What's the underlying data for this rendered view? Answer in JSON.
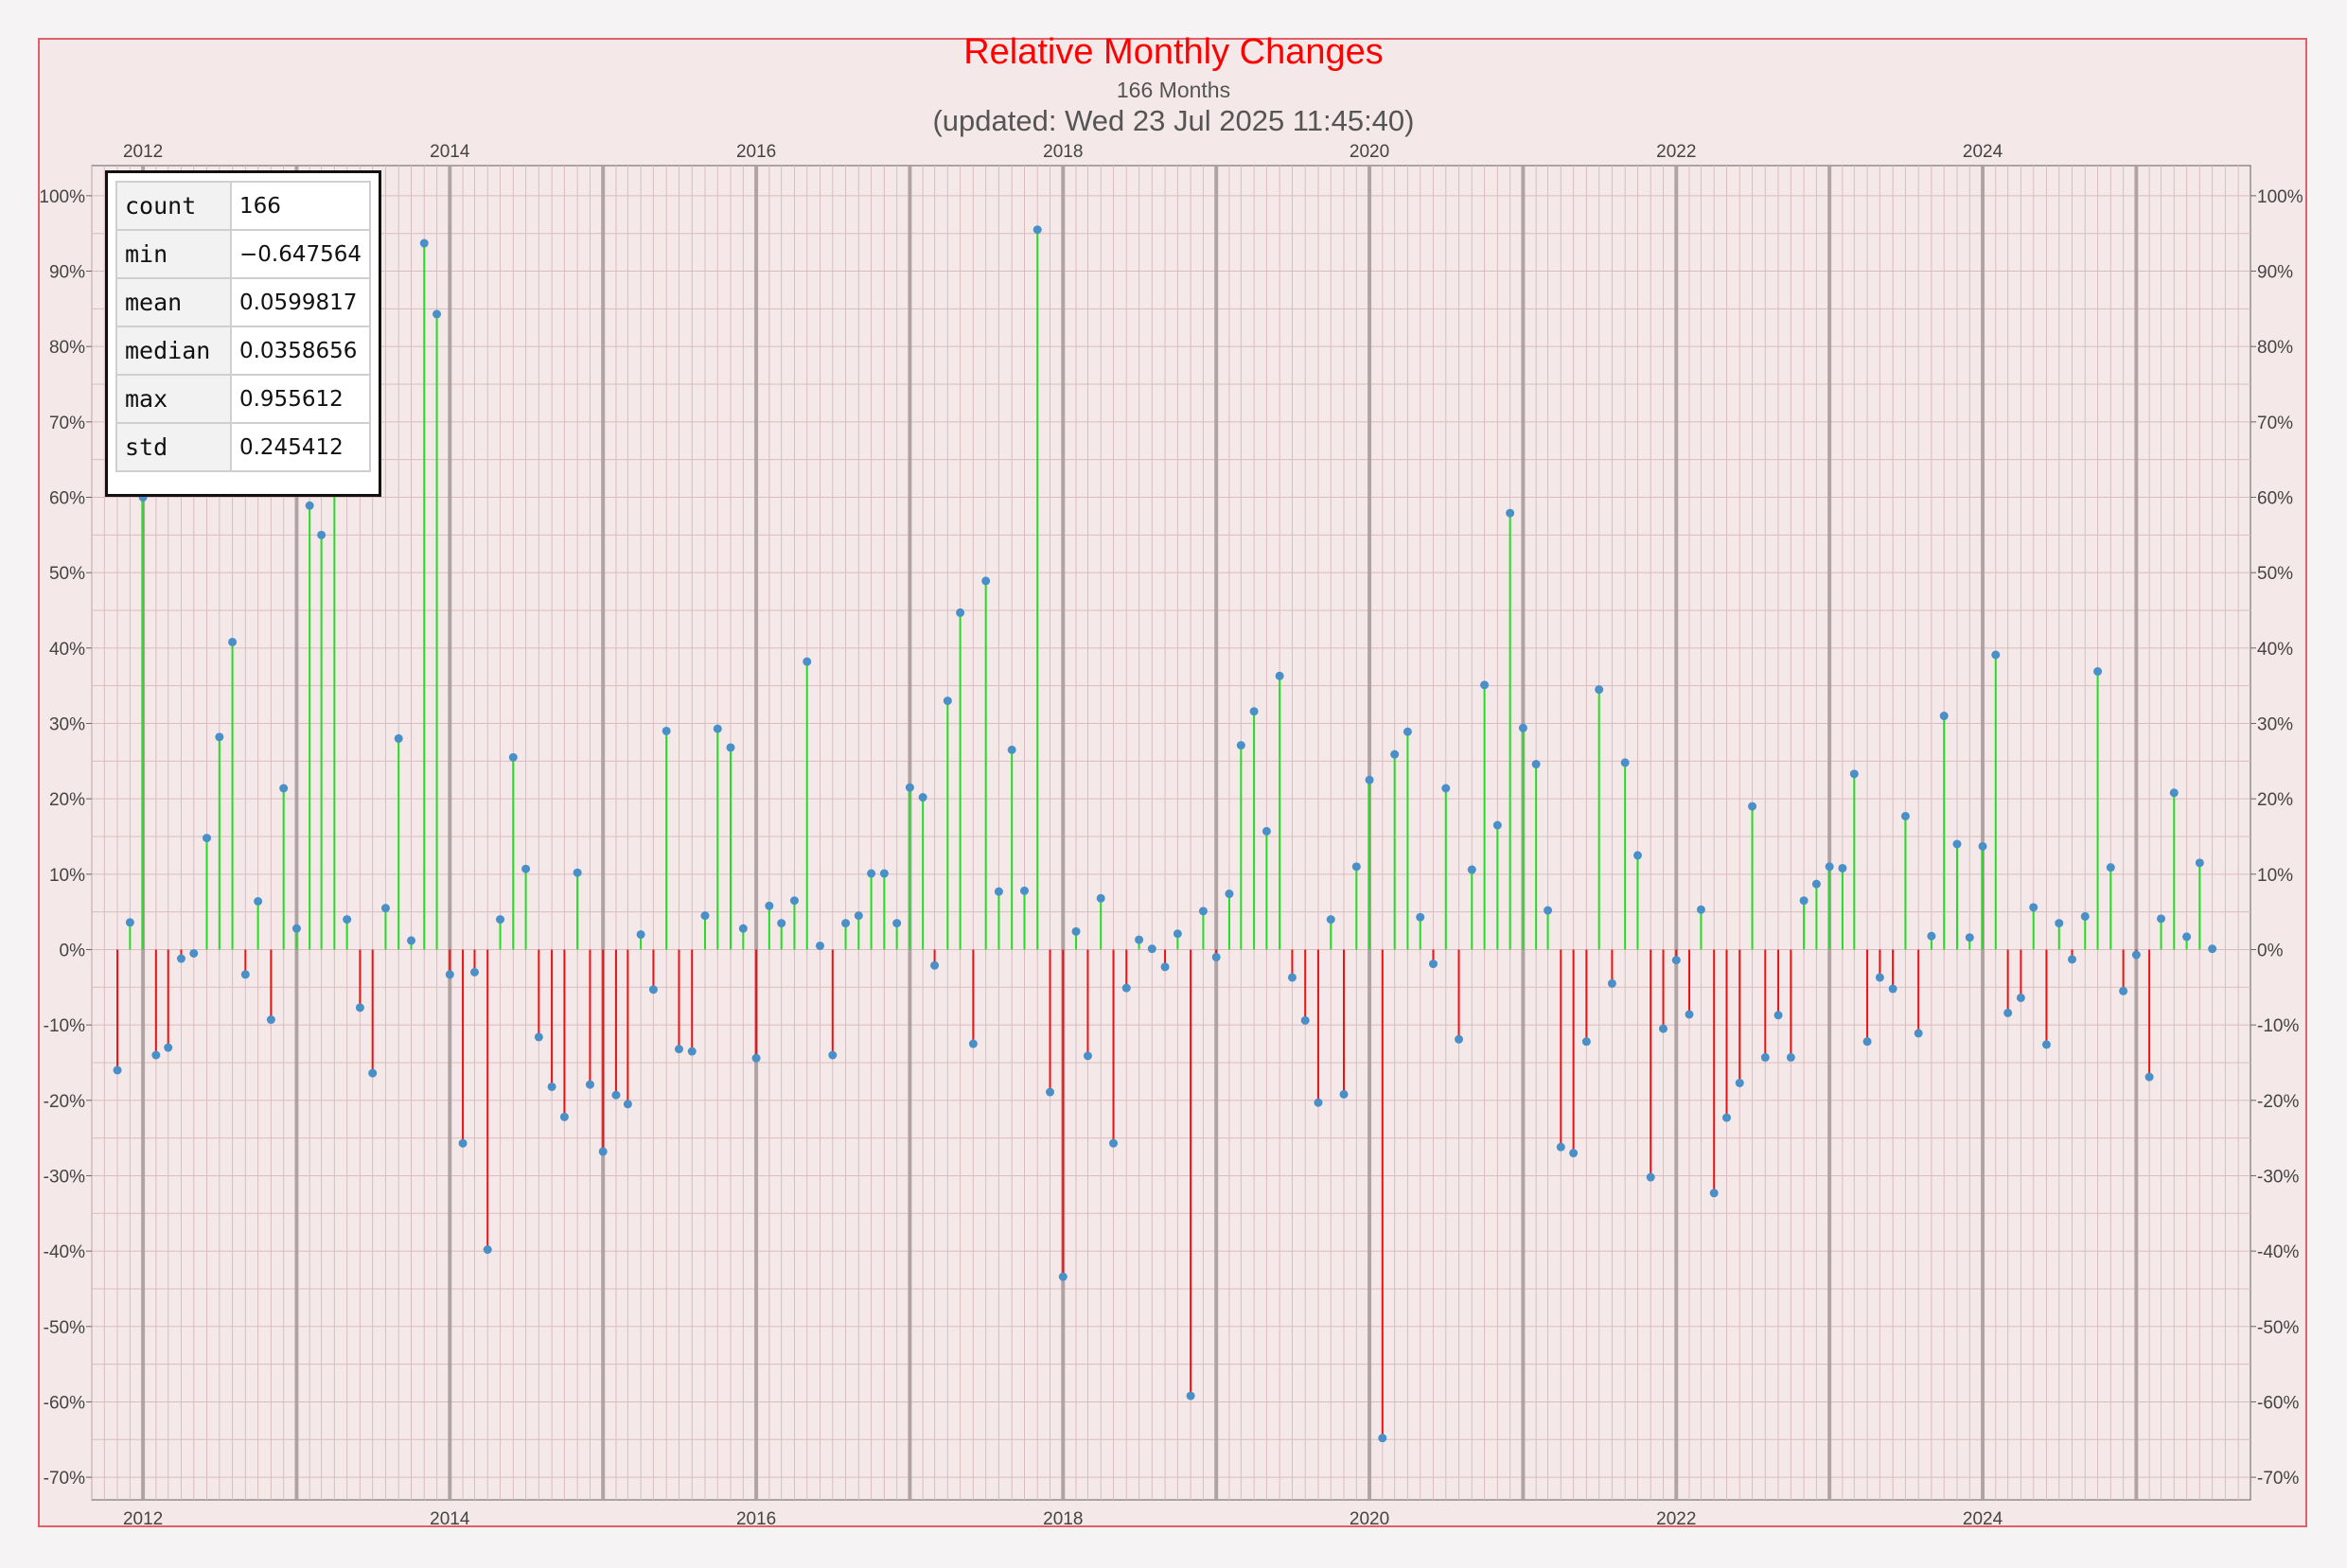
{
  "title": "Relative Monthly Changes",
  "subtitle": "166 Months",
  "updated": "(updated: Wed 23 Jul 2025 11:45:40)",
  "colors": {
    "positive": "#22dd22",
    "negative": "#ee1111",
    "marker": "#4a90c8",
    "title": "#ff0000",
    "frame": "#e0606a"
  },
  "stats": [
    {
      "key": "count",
      "value": "166"
    },
    {
      "key": "min",
      "value": "−0.647564"
    },
    {
      "key": "mean",
      "value": "0.0599817"
    },
    {
      "key": "median",
      "value": "0.0358656"
    },
    {
      "key": "max",
      "value": "0.955612"
    },
    {
      "key": "std",
      "value": "0.245412"
    }
  ],
  "chart_data": {
    "type": "stem",
    "x_axis": {
      "type": "date",
      "range": [
        "2011-09-01",
        "2025-09-30"
      ],
      "tick_labels": [
        "2012",
        "2014",
        "2016",
        "2018",
        "2020",
        "2022",
        "2024"
      ],
      "labels_top_and_bottom": true
    },
    "y_axis": {
      "range": [
        -0.73,
        1.04
      ],
      "ticks": [
        -0.7,
        -0.6,
        -0.5,
        -0.4,
        -0.3,
        -0.2,
        -0.1,
        0,
        0.1,
        0.2,
        0.3,
        0.4,
        0.5,
        0.6,
        0.7,
        0.8,
        0.9,
        1.0
      ],
      "format": "percent",
      "labels_left_and_right": true
    },
    "grid": true,
    "start_month": "2011-11",
    "values": [
      -0.16,
      0.036,
      0.6,
      -0.14,
      -0.13,
      -0.012,
      -0.005,
      0.148,
      0.282,
      0.408,
      -0.033,
      0.064,
      -0.093,
      0.214,
      0.028,
      0.589,
      0.55,
      0.62,
      0.04,
      -0.077,
      -0.164,
      0.055,
      0.28,
      0.012,
      0.937,
      0.843,
      -0.033,
      -0.257,
      -0.03,
      -0.398,
      0.04,
      0.255,
      0.107,
      -0.116,
      -0.182,
      -0.222,
      0.102,
      -0.179,
      -0.268,
      -0.193,
      -0.205,
      0.02,
      -0.053,
      0.29,
      -0.132,
      -0.135,
      0.045,
      0.293,
      0.268,
      0.028,
      -0.144,
      0.058,
      0.035,
      0.065,
      0.382,
      0.005,
      -0.14,
      0.035,
      0.045,
      0.101,
      0.101,
      0.035,
      0.215,
      0.202,
      -0.021,
      0.33,
      0.447,
      -0.125,
      0.489,
      0.077,
      0.265,
      0.078,
      0.955,
      -0.189,
      -0.434,
      0.024,
      -0.141,
      0.068,
      -0.257,
      -0.051,
      0.013,
      0.001,
      -0.023,
      0.021,
      -0.592,
      0.051,
      -0.01,
      0.074,
      0.271,
      0.316,
      0.157,
      0.363,
      -0.037,
      -0.094,
      -0.203,
      0.04,
      -0.192,
      0.11,
      0.225,
      -0.648,
      0.259,
      0.289,
      0.043,
      -0.019,
      0.214,
      -0.119,
      0.106,
      0.351,
      0.165,
      0.579,
      0.294,
      0.246,
      0.052,
      -0.262,
      -0.27,
      -0.122,
      0.345,
      -0.045,
      0.248,
      0.125,
      -0.302,
      -0.105,
      -0.014,
      -0.086,
      0.053,
      -0.323,
      -0.223,
      -0.177,
      0.19,
      -0.143,
      -0.087,
      -0.143,
      0.065,
      0.087,
      0.11,
      0.108,
      0.233,
      -0.122,
      -0.037,
      -0.052,
      0.177,
      -0.111,
      0.018,
      0.31,
      0.14,
      0.016,
      0.137,
      0.391,
      -0.084,
      -0.064,
      0.056,
      -0.126,
      0.035,
      -0.013,
      0.044,
      0.369,
      0.109,
      -0.055,
      -0.007,
      -0.169,
      0.041,
      0.208,
      0.017,
      0.115,
      0.001
    ]
  }
}
